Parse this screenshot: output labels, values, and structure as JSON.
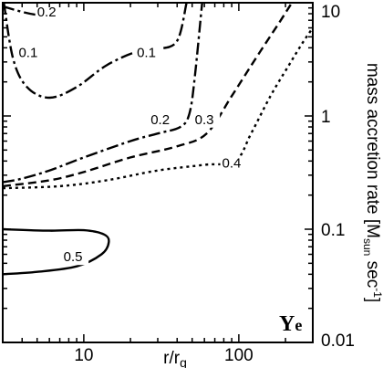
{
  "chart_data": {
    "type": "contour",
    "panel_label": "Ye",
    "xlabel": "r/r",
    "xlabel_sub": "g",
    "ylabel": "mass accretion rate [M",
    "ylabel_sub": "sun",
    "ylabel_unit": " sec",
    "ylabel_sup": "-1",
    "ylabel_close": "]",
    "x_scale": "log",
    "y_scale": "log",
    "xlim": [
      3,
      300
    ],
    "ylim": [
      0.01,
      10
    ],
    "x_tick_labels": [
      "10",
      "100"
    ],
    "y_tick_labels": [
      "10",
      "1",
      "0.1",
      "0.01"
    ],
    "y_tick_values": [
      10,
      1,
      0.1,
      0.01
    ],
    "x_tick_values": [
      10,
      100
    ],
    "contour_labels": [
      "0.2",
      "0.1",
      "0.1",
      "0.2",
      "0.3",
      "0.4",
      "0.5"
    ],
    "contours": [
      {
        "level": "0.2",
        "style": "dashdot",
        "points": [
          [
            3,
            9.3
          ],
          [
            4,
            8.3
          ],
          [
            5,
            7.8
          ],
          [
            6,
            7.6
          ]
        ]
      },
      {
        "level": "0.1",
        "style": "dashdot",
        "points": [
          [
            3.05,
            10
          ],
          [
            3.5,
            3.2
          ],
          [
            4.3,
            1.8
          ],
          [
            6,
            1.45
          ],
          [
            9,
            1.8
          ],
          [
            14,
            2.8
          ],
          [
            22,
            3.7
          ],
          [
            30,
            3.9
          ],
          [
            40,
            4.6
          ],
          [
            46,
            10
          ]
        ]
      },
      {
        "level": "0.2",
        "style": "dashdot",
        "points": [
          [
            3,
            0.26
          ],
          [
            4,
            0.28
          ],
          [
            6,
            0.33
          ],
          [
            10,
            0.43
          ],
          [
            20,
            0.6
          ],
          [
            30,
            0.7
          ],
          [
            42,
            0.8
          ],
          [
            48,
            1.05
          ],
          [
            52,
            2.2
          ],
          [
            58,
            10
          ]
        ]
      },
      {
        "level": "0.3",
        "style": "dash",
        "points": [
          [
            3,
            0.24
          ],
          [
            6,
            0.27
          ],
          [
            10,
            0.32
          ],
          [
            20,
            0.43
          ],
          [
            40,
            0.54
          ],
          [
            62,
            0.7
          ],
          [
            90,
            1.5
          ],
          [
            130,
            3.3
          ],
          [
            180,
            6.5
          ],
          [
            220,
            10
          ]
        ]
      },
      {
        "level": "0.4",
        "style": "dot",
        "points": [
          [
            3,
            0.23
          ],
          [
            7,
            0.24
          ],
          [
            14,
            0.27
          ],
          [
            30,
            0.33
          ],
          [
            60,
            0.37
          ],
          [
            95,
            0.4
          ],
          [
            120,
            0.7
          ],
          [
            160,
            1.5
          ],
          [
            210,
            2.8
          ],
          [
            260,
            4.5
          ],
          [
            300,
            6.0
          ]
        ]
      },
      {
        "level": "0.5",
        "style": "solid",
        "closed": true,
        "points": [
          [
            3,
            0.1
          ],
          [
            6,
            0.097
          ],
          [
            10,
            0.098
          ],
          [
            13.5,
            0.09
          ],
          [
            14.5,
            0.077
          ],
          [
            13,
            0.06
          ],
          [
            9,
            0.047
          ],
          [
            5,
            0.042
          ],
          [
            3,
            0.04
          ]
        ]
      }
    ],
    "label_positions": [
      {
        "text": "0.2",
        "x": 5.0,
        "y": 7.6
      },
      {
        "text": "0.1",
        "x": 3.8,
        "y": 3.3
      },
      {
        "text": "0.1",
        "x": 22,
        "y": 3.3
      },
      {
        "text": "0.2",
        "x": 27,
        "y": 0.85
      },
      {
        "text": "0.3",
        "x": 52,
        "y": 0.85
      },
      {
        "text": "0.4",
        "x": 78,
        "y": 0.35
      },
      {
        "text": "0.5",
        "x": 7.4,
        "y": 0.052
      }
    ]
  }
}
